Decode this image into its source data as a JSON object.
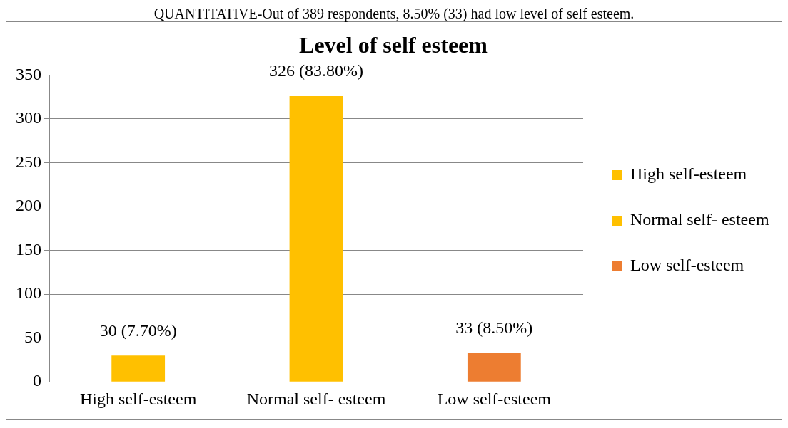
{
  "chart_data": {
    "type": "bar",
    "title": "Level of self esteem",
    "annotations": [
      "QUANTITATIVE-Out of 389 respondents, 8.50% (33) had low level of self esteem."
    ],
    "categories": [
      "High self-esteem",
      "Normal self- esteem",
      "Low self-esteem"
    ],
    "series": [
      {
        "name": "High self-esteem",
        "color": "#ffc000",
        "values": [
          30,
          null,
          null
        ],
        "value_labels": [
          "30 (7.70%)",
          null,
          null
        ]
      },
      {
        "name": "Normal self- esteem",
        "color": "#ffc000",
        "values": [
          null,
          326,
          null
        ],
        "value_labels": [
          null,
          "326 (83.80%)",
          null
        ]
      },
      {
        "name": "Low self-esteem",
        "color": "#ed7d31",
        "values": [
          null,
          null,
          33
        ],
        "value_labels": [
          null,
          null,
          "33 (8.50%)"
        ]
      }
    ],
    "ylim": [
      0,
      350
    ],
    "yticks": [
      0,
      50,
      100,
      150,
      200,
      250,
      300,
      350
    ],
    "grid": "y",
    "legend": "right"
  }
}
